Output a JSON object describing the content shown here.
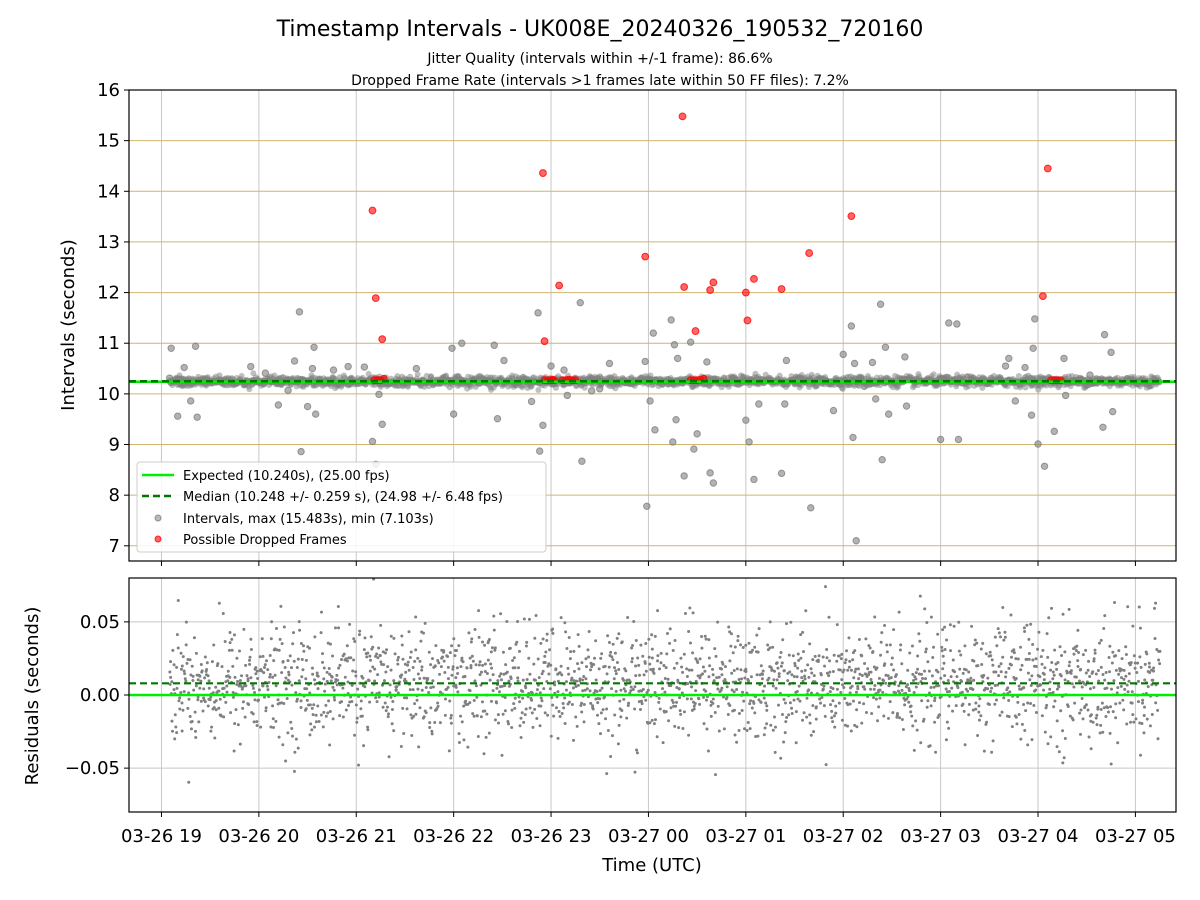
{
  "figure": {
    "title": "Timestamp Intervals - UK008E_20240326_190532_720160",
    "subtitle_1": "Jitter Quality (intervals within +/-1 frame): 86.6%",
    "subtitle_2": "Dropped Frame Rate (intervals >1 frames late within 50 FF files): 7.2%"
  },
  "colors": {
    "expected": "#00ee00",
    "median": "#007700",
    "intervals": "#808080",
    "dropped": "#ff0000",
    "hgrid_top": "#d2b46e",
    "grid": "#c8c8c8"
  },
  "chart_data": [
    {
      "type": "scatter",
      "panel": "top",
      "ylabel": "Intervals (seconds)",
      "ylim": [
        6.7,
        16
      ],
      "yticks": [
        7,
        8,
        9,
        10,
        11,
        12,
        13,
        14,
        15,
        16
      ],
      "grid": true,
      "legend_position": "lower-left",
      "expected_value": 10.24,
      "median_value": 10.248,
      "legend": [
        "Expected (10.240s), (25.00 fps)",
        "Median (10.248 +/- 0.259 s), (24.98 +/- 6.48 fps)",
        "Intervals, max (15.483s), min (7.103s)",
        "Possible Dropped Frames"
      ],
      "series": [
        {
          "name": "Intervals, max (15.483s), min (7.103s)",
          "points": [
            [
              "03-26 19:05",
              10.31
            ],
            [
              "03-26 19:06",
              10.9
            ],
            [
              "03-26 19:10",
              9.56
            ],
            [
              "03-26 19:14",
              10.52
            ],
            [
              "03-26 19:18",
              9.86
            ],
            [
              "03-26 19:21",
              10.94
            ],
            [
              "03-26 19:22",
              9.54
            ],
            [
              "03-26 19:55",
              10.54
            ],
            [
              "03-26 20:04",
              10.41
            ],
            [
              "03-26 20:12",
              9.78
            ],
            [
              "03-26 20:18",
              10.07
            ],
            [
              "03-26 20:22",
              10.65
            ],
            [
              "03-26 20:25",
              11.62
            ],
            [
              "03-26 20:26",
              8.86
            ],
            [
              "03-26 20:30",
              9.75
            ],
            [
              "03-26 20:33",
              10.5
            ],
            [
              "03-26 20:34",
              10.92
            ],
            [
              "03-26 20:35",
              9.6
            ],
            [
              "03-26 20:46",
              10.47
            ],
            [
              "03-26 20:55",
              10.54
            ],
            [
              "03-26 21:05",
              10.53
            ],
            [
              "03-26 21:10",
              9.06
            ],
            [
              "03-26 21:12",
              8.61
            ],
            [
              "03-26 21:14",
              9.99
            ],
            [
              "03-26 21:16",
              9.4
            ],
            [
              "03-26 21:37",
              10.5
            ],
            [
              "03-26 21:59",
              10.9
            ],
            [
              "03-26 22:00",
              9.6
            ],
            [
              "03-26 22:05",
              11.0
            ],
            [
              "03-26 22:25",
              10.96
            ],
            [
              "03-26 22:27",
              9.51
            ],
            [
              "03-26 22:31",
              10.66
            ],
            [
              "03-26 22:48",
              9.85
            ],
            [
              "03-26 22:52",
              11.6
            ],
            [
              "03-26 22:53",
              8.87
            ],
            [
              "03-26 22:55",
              9.38
            ],
            [
              "03-26 23:00",
              10.55
            ],
            [
              "03-26 23:02",
              10.21
            ],
            [
              "03-26 23:08",
              10.47
            ],
            [
              "03-26 23:10",
              9.97
            ],
            [
              "03-26 23:18",
              11.8
            ],
            [
              "03-26 23:19",
              8.67
            ],
            [
              "03-26 23:25",
              10.06
            ],
            [
              "03-26 23:30",
              10.1
            ],
            [
              "03-26 23:36",
              10.6
            ],
            [
              "03-26 23:58",
              10.64
            ],
            [
              "03-26 23:59",
              7.78
            ],
            [
              "03-27 00:01",
              9.86
            ],
            [
              "03-27 00:03",
              11.2
            ],
            [
              "03-27 00:04",
              9.29
            ],
            [
              "03-27 00:12",
              10.28
            ],
            [
              "03-27 00:14",
              11.46
            ],
            [
              "03-27 00:15",
              9.05
            ],
            [
              "03-27 00:16",
              10.97
            ],
            [
              "03-27 00:17",
              9.49
            ],
            [
              "03-27 00:18",
              10.7
            ],
            [
              "03-27 00:22",
              8.38
            ],
            [
              "03-27 00:26",
              11.02
            ],
            [
              "03-27 00:28",
              8.91
            ],
            [
              "03-27 00:30",
              9.21
            ],
            [
              "03-27 00:36",
              10.63
            ],
            [
              "03-27 00:38",
              8.44
            ],
            [
              "03-27 00:40",
              8.24
            ],
            [
              "03-27 00:52",
              10.31
            ],
            [
              "03-27 01:00",
              9.48
            ],
            [
              "03-27 01:02",
              9.05
            ],
            [
              "03-27 01:05",
              8.31
            ],
            [
              "03-27 01:08",
              9.8
            ],
            [
              "03-27 01:22",
              8.43
            ],
            [
              "03-27 01:24",
              9.8
            ],
            [
              "03-27 01:25",
              10.66
            ],
            [
              "03-27 01:40",
              7.75
            ],
            [
              "03-27 01:50",
              10.25
            ],
            [
              "03-27 01:54",
              9.67
            ],
            [
              "03-27 02:00",
              10.78
            ],
            [
              "03-27 02:05",
              11.34
            ],
            [
              "03-27 02:06",
              9.14
            ],
            [
              "03-27 02:07",
              10.6
            ],
            [
              "03-27 02:08",
              7.1
            ],
            [
              "03-27 02:10",
              10.3
            ],
            [
              "03-27 02:13",
              10.15
            ],
            [
              "03-27 02:18",
              10.62
            ],
            [
              "03-27 02:20",
              9.9
            ],
            [
              "03-27 02:23",
              11.77
            ],
            [
              "03-27 02:24",
              8.7
            ],
            [
              "03-27 02:26",
              10.92
            ],
            [
              "03-27 02:28",
              9.6
            ],
            [
              "03-27 02:38",
              10.73
            ],
            [
              "03-27 02:39",
              9.76
            ],
            [
              "03-27 03:00",
              9.1
            ],
            [
              "03-27 03:05",
              11.4
            ],
            [
              "03-27 03:10",
              11.38
            ],
            [
              "03-27 03:11",
              9.1
            ],
            [
              "03-27 03:40",
              10.55
            ],
            [
              "03-27 03:42",
              10.7
            ],
            [
              "03-27 03:46",
              9.86
            ],
            [
              "03-27 03:52",
              10.52
            ],
            [
              "03-27 03:56",
              9.58
            ],
            [
              "03-27 03:57",
              10.9
            ],
            [
              "03-27 03:58",
              11.48
            ],
            [
              "03-27 04:00",
              9.01
            ],
            [
              "03-27 04:04",
              8.57
            ],
            [
              "03-27 04:10",
              9.26
            ],
            [
              "03-27 04:16",
              10.7
            ],
            [
              "03-27 04:17",
              9.97
            ],
            [
              "03-27 04:27",
              10.28
            ],
            [
              "03-27 04:32",
              10.37
            ],
            [
              "03-27 04:40",
              9.34
            ],
            [
              "03-27 04:41",
              11.17
            ],
            [
              "03-27 04:45",
              10.82
            ],
            [
              "03-27 04:46",
              9.65
            ],
            [
              "03-27 04:55",
              10.3
            ]
          ]
        },
        {
          "name": "Possible Dropped Frames",
          "points": [
            [
              "03-26 21:10",
              13.62
            ],
            [
              "03-26 21:12",
              11.89
            ],
            [
              "03-26 21:16",
              11.08
            ],
            [
              "03-26 21:11",
              10.27
            ],
            [
              "03-26 21:13",
              10.27
            ],
            [
              "03-26 21:15",
              10.27
            ],
            [
              "03-26 21:17",
              10.3
            ],
            [
              "03-26 22:55",
              14.36
            ],
            [
              "03-26 22:56",
              11.04
            ],
            [
              "03-26 22:56",
              10.27
            ],
            [
              "03-26 22:58",
              10.27
            ],
            [
              "03-26 23:00",
              10.27
            ],
            [
              "03-26 23:01",
              10.28
            ],
            [
              "03-26 23:02",
              10.27
            ],
            [
              "03-26 23:05",
              12.14
            ],
            [
              "03-26 23:07",
              10.27
            ],
            [
              "03-26 23:09",
              10.27
            ],
            [
              "03-26 23:11",
              10.28
            ],
            [
              "03-26 23:13",
              10.27
            ],
            [
              "03-26 23:15",
              10.27
            ],
            [
              "03-26 23:58",
              12.71
            ],
            [
              "03-27 00:21",
              15.48
            ],
            [
              "03-27 00:22",
              12.11
            ],
            [
              "03-27 00:29",
              11.24
            ],
            [
              "03-27 00:26",
              10.27
            ],
            [
              "03-27 00:28",
              10.27
            ],
            [
              "03-27 00:30",
              10.27
            ],
            [
              "03-27 00:32",
              10.28
            ],
            [
              "03-27 00:34",
              10.3
            ],
            [
              "03-27 00:38",
              12.05
            ],
            [
              "03-27 00:40",
              12.2
            ],
            [
              "03-27 01:00",
              12.0
            ],
            [
              "03-27 01:01",
              11.45
            ],
            [
              "03-27 01:05",
              12.27
            ],
            [
              "03-27 01:22",
              12.07
            ],
            [
              "03-27 01:39",
              12.78
            ],
            [
              "03-27 02:05",
              13.51
            ],
            [
              "03-27 04:03",
              11.93
            ],
            [
              "03-27 04:06",
              14.45
            ],
            [
              "03-27 04:08",
              10.27
            ],
            [
              "03-27 04:10",
              10.27
            ],
            [
              "03-27 04:12",
              10.27
            ],
            [
              "03-27 04:14",
              10.27
            ]
          ]
        }
      ]
    },
    {
      "type": "scatter",
      "panel": "bottom",
      "xlabel": "Time (UTC)",
      "ylabel": "Residuals (seconds)",
      "ylim": [
        -0.08,
        0.08
      ],
      "yticks": [
        0.05,
        0.0,
        -0.05
      ],
      "ytick_labels": [
        "0.05",
        "0.00",
        "−0.05"
      ],
      "xlim": [
        "03-26 18:40",
        "03-27 05:25"
      ],
      "xticks": [
        "03-26 19:00",
        "03-26 20:00",
        "03-26 21:00",
        "03-26 22:00",
        "03-26 23:00",
        "03-27 00:00",
        "03-27 01:00",
        "03-27 02:00",
        "03-27 03:00",
        "03-27 04:00",
        "03-27 05:00"
      ],
      "xtick_labels": [
        "03-26 19",
        "03-26 20",
        "03-26 21",
        "03-26 22",
        "03-26 23",
        "03-27 00",
        "03-27 01",
        "03-27 02",
        "03-27 03",
        "03-27 04",
        "03-27 05"
      ],
      "grid": true,
      "expected_value": 0.0,
      "median_value": 0.008,
      "series": [
        {
          "name": "Residuals",
          "time_range": [
            "03-26 19:05",
            "03-27 05:15"
          ],
          "count": 2200,
          "mean": 0.008,
          "std": 0.02
        }
      ]
    }
  ]
}
